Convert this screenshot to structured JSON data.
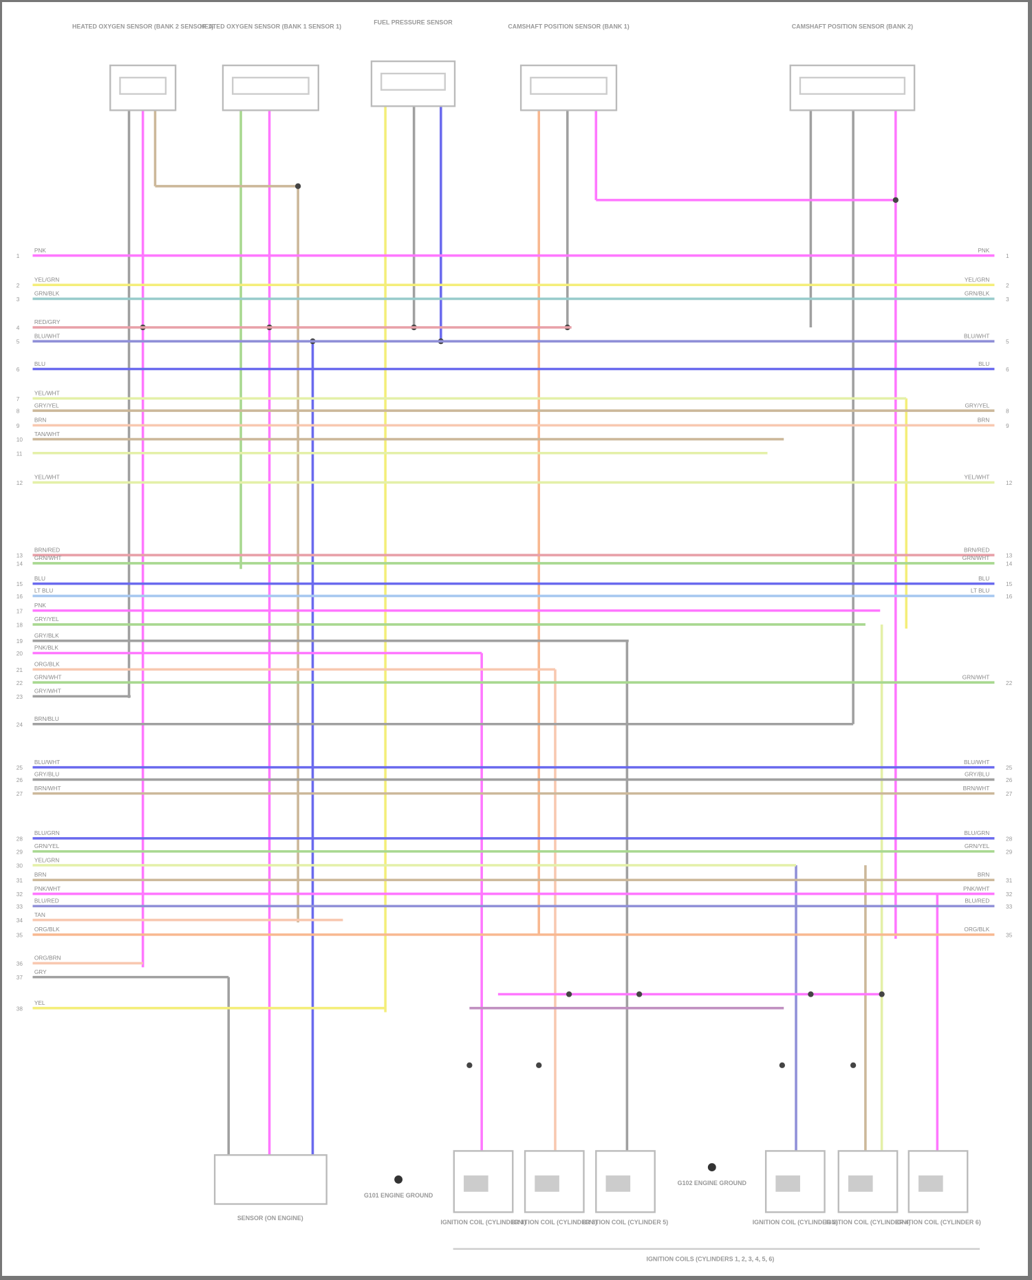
{
  "diagram": {
    "footer_credit": "",
    "colors": {
      "pink": "#ff77ff",
      "yellow": "#f4ee7a",
      "teal": "#99cccc",
      "rose": "#e8a0a8",
      "violet": "#9090d8",
      "blue": "#6a6aee",
      "lime": "#e4f0a8",
      "tan": "#ccb89a",
      "peach": "#f8c8b0",
      "green": "#a8d890",
      "gray": "#a0a0a0",
      "orange": "#f8b890",
      "lightblue": "#a8c8f0"
    },
    "rows": [
      {
        "pin": "1",
        "label": "PNK",
        "color": "pink"
      },
      {
        "pin": "2",
        "label": "YEL/GRN",
        "color": "yellow"
      },
      {
        "pin": "3",
        "label": "GRN/BLK",
        "color": "teal"
      },
      {
        "pin": "4",
        "label": "RED/GRY",
        "color": "rose"
      },
      {
        "pin": "5",
        "label": "BLU/WHT",
        "color": "violet"
      },
      {
        "pin": "6",
        "label": "BLU",
        "color": "blue"
      },
      {
        "pin": "7",
        "label": "YEL/WHT",
        "color": "lime"
      },
      {
        "pin": "8",
        "label": "GRY/YEL",
        "color": "tan"
      },
      {
        "pin": "9",
        "label": "BRN",
        "color": "peach"
      },
      {
        "pin": "10",
        "label": "TAN/WHT",
        "color": "tan"
      },
      {
        "pin": "11",
        "label": "",
        "color": "lime"
      },
      {
        "pin": "12",
        "label": "YEL/WHT",
        "color": "lime"
      },
      {
        "pin": "13",
        "label": "BRN/RED",
        "color": "rose"
      },
      {
        "pin": "14",
        "label": "GRN/WHT",
        "color": "green"
      },
      {
        "pin": "15",
        "label": "BLU",
        "color": "blue"
      },
      {
        "pin": "16",
        "label": "LT BLU",
        "color": "lightblue"
      },
      {
        "pin": "17",
        "label": "PNK",
        "color": "pink"
      },
      {
        "pin": "18",
        "label": "GRY/YEL",
        "color": "green"
      },
      {
        "pin": "19",
        "label": "GRY/BLK",
        "color": "gray"
      },
      {
        "pin": "20",
        "label": "PNK/BLK",
        "color": "pink"
      },
      {
        "pin": "21",
        "label": "ORG/BLK",
        "color": "peach"
      },
      {
        "pin": "22",
        "label": "GRN/WHT",
        "color": "green"
      },
      {
        "pin": "23",
        "label": "GRY/WHT",
        "color": "gray"
      },
      {
        "pin": "24",
        "label": "BRN/BLU",
        "color": "gray"
      },
      {
        "pin": "25",
        "label": "BLU/WHT",
        "color": "blue"
      },
      {
        "pin": "26",
        "label": "GRY/BLU",
        "color": "gray"
      },
      {
        "pin": "27",
        "label": "BRN/WHT",
        "color": "tan"
      },
      {
        "pin": "28",
        "label": "BLU/GRN",
        "color": "blue"
      },
      {
        "pin": "29",
        "label": "GRN/YEL",
        "color": "green"
      },
      {
        "pin": "30",
        "label": "YEL/GRN",
        "color": "lime"
      },
      {
        "pin": "31",
        "label": "BRN",
        "color": "tan"
      },
      {
        "pin": "32",
        "label": "PNK/WHT",
        "color": "pink"
      },
      {
        "pin": "33",
        "label": "BLU/RED",
        "color": "violet"
      },
      {
        "pin": "34",
        "label": "TAN",
        "color": "peach"
      },
      {
        "pin": "35",
        "label": "ORG/BLK",
        "color": "orange"
      },
      {
        "pin": "36",
        "label": "ORG/BRN",
        "color": "peach"
      },
      {
        "pin": "37",
        "label": "GRY",
        "color": "gray"
      },
      {
        "pin": "38",
        "label": "YEL",
        "color": "yellow"
      }
    ],
    "top_components": [
      {
        "title": "HEATED OXYGEN SENSOR (BANK 2 SENSOR 1)"
      },
      {
        "title": "HEATED OXYGEN SENSOR (BANK 1 SENSOR 1)"
      },
      {
        "title": "FUEL PRESSURE SENSOR"
      },
      {
        "title": "CAMSHAFT POSITION SENSOR (BANK 1)"
      },
      {
        "title": "CAMSHAFT POSITION SENSOR (BANK 2)"
      }
    ],
    "bottom_sensor": {
      "title": "SENSOR (ON ENGINE)"
    },
    "coils": [
      {
        "title": "IGNITION COIL (CYLINDER 1)"
      },
      {
        "title": "IGNITION COIL (CYLINDER 3)"
      },
      {
        "title": "IGNITION COIL (CYLINDER 5)"
      },
      {
        "title": "IGNITION COIL (CYLINDER 2)"
      },
      {
        "title": "IGNITION COIL (CYLINDER 4)"
      },
      {
        "title": "IGNITION COIL (CYLINDER 6)"
      }
    ],
    "grounds": [
      {
        "title": "G101 ENGINE GROUND"
      },
      {
        "title": "G102 ENGINE GROUND"
      }
    ],
    "caption": "IGNITION COILS (CYLINDERS 1, 2, 3, 4, 5, 6)"
  }
}
